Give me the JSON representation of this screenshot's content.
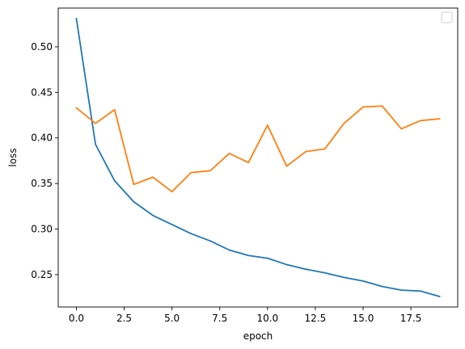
{
  "chart_data": {
    "type": "line",
    "title": "",
    "xlabel": "epoch",
    "ylabel": "loss",
    "xlim": [
      -0.95,
      19.95
    ],
    "ylim": [
      0.2145,
      0.5425
    ],
    "x_ticks": [
      0.0,
      2.5,
      5.0,
      7.5,
      10.0,
      12.5,
      15.0,
      17.5
    ],
    "x_tick_labels": [
      "0.0",
      "2.5",
      "5.0",
      "7.5",
      "10.0",
      "12.5",
      "15.0",
      "17.5"
    ],
    "y_ticks": [
      0.25,
      0.3,
      0.35,
      0.4,
      0.45,
      0.5
    ],
    "y_tick_labels": [
      "0.25",
      "0.30",
      "0.35",
      "0.40",
      "0.45",
      "0.50"
    ],
    "grid": false,
    "legend": {
      "placement": "top-right",
      "entries": []
    },
    "x": [
      0,
      1,
      2,
      3,
      4,
      5,
      6,
      7,
      8,
      9,
      10,
      11,
      12,
      13,
      14,
      15,
      16,
      17,
      18,
      19
    ],
    "series": [
      {
        "color": "#1f77b4",
        "values": [
          0.531,
          0.393,
          0.353,
          0.33,
          0.315,
          0.305,
          0.295,
          0.287,
          0.277,
          0.271,
          0.268,
          0.261,
          0.256,
          0.252,
          0.247,
          0.243,
          0.237,
          0.233,
          0.232,
          0.226
        ]
      },
      {
        "color": "#ff7f0e",
        "values": [
          0.433,
          0.416,
          0.431,
          0.349,
          0.357,
          0.341,
          0.362,
          0.364,
          0.383,
          0.373,
          0.414,
          0.369,
          0.385,
          0.388,
          0.416,
          0.434,
          0.435,
          0.41,
          0.419,
          0.421
        ]
      }
    ]
  }
}
